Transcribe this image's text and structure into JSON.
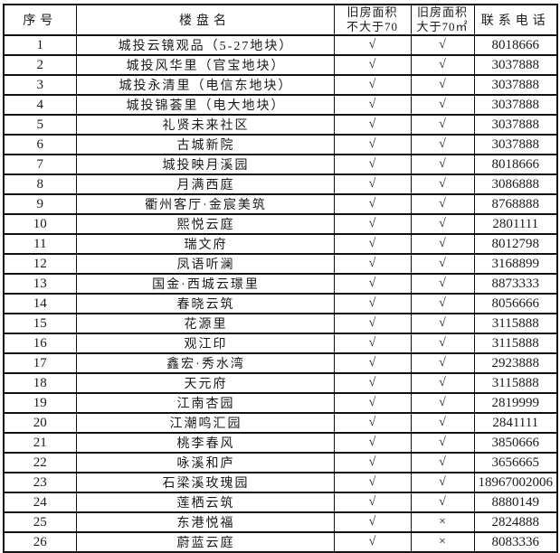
{
  "table": {
    "headers": {
      "no": "序号",
      "name": "楼盘名",
      "col3_line1": "旧房面积",
      "col3_line2": "不大于70",
      "col4_line1": "旧房面积",
      "col4_line2": "大于70㎡",
      "phone": "联系电话"
    },
    "rows": [
      {
        "no": "1",
        "name": "城投云镜观品（5-27地块）",
        "le70": "√",
        "gt70": "√",
        "phone": "8018666"
      },
      {
        "no": "2",
        "name": "城投风华里（官宝地块）",
        "le70": "√",
        "gt70": "√",
        "phone": "3037888"
      },
      {
        "no": "3",
        "name": "城投永清里（电信东地块）",
        "le70": "√",
        "gt70": "√",
        "phone": "3037888"
      },
      {
        "no": "4",
        "name": "城投锦荟里（电大地块）",
        "le70": "√",
        "gt70": "√",
        "phone": "3037888"
      },
      {
        "no": "5",
        "name": "礼贤未来社区",
        "le70": "√",
        "gt70": "√",
        "phone": "3037888"
      },
      {
        "no": "6",
        "name": "古城新院",
        "le70": "√",
        "gt70": "√",
        "phone": "3037888"
      },
      {
        "no": "7",
        "name": "城投映月溪园",
        "le70": "√",
        "gt70": "√",
        "phone": "8018666"
      },
      {
        "no": "8",
        "name": "月满西庭",
        "le70": "√",
        "gt70": "√",
        "phone": "3086888"
      },
      {
        "no": "9",
        "name": "衢州客厅·金宸美筑",
        "le70": "√",
        "gt70": "√",
        "phone": "8768888"
      },
      {
        "no": "10",
        "name": "熙悦云庭",
        "le70": "√",
        "gt70": "√",
        "phone": "2801111"
      },
      {
        "no": "11",
        "name": "瑞文府",
        "le70": "√",
        "gt70": "√",
        "phone": "8012798"
      },
      {
        "no": "12",
        "name": "凤语听澜",
        "le70": "√",
        "gt70": "√",
        "phone": "3168899"
      },
      {
        "no": "13",
        "name": "国金·西城云璟里",
        "le70": "√",
        "gt70": "√",
        "phone": "8873333"
      },
      {
        "no": "14",
        "name": "春晓云筑",
        "le70": "√",
        "gt70": "√",
        "phone": "8056666"
      },
      {
        "no": "15",
        "name": "花源里",
        "le70": "√",
        "gt70": "√",
        "phone": "3115888"
      },
      {
        "no": "16",
        "name": "观江印",
        "le70": "√",
        "gt70": "√",
        "phone": "3115888"
      },
      {
        "no": "17",
        "name": "鑫宏·秀水湾",
        "le70": "√",
        "gt70": "√",
        "phone": "2923888"
      },
      {
        "no": "18",
        "name": "天元府",
        "le70": "√",
        "gt70": "√",
        "phone": "3115888"
      },
      {
        "no": "19",
        "name": "江南杏园",
        "le70": "√",
        "gt70": "√",
        "phone": "2819999"
      },
      {
        "no": "20",
        "name": "江潮鸣汇园",
        "le70": "√",
        "gt70": "√",
        "phone": "2841111"
      },
      {
        "no": "21",
        "name": "桃李春风",
        "le70": "√",
        "gt70": "√",
        "phone": "3850666"
      },
      {
        "no": "22",
        "name": "咏溪和庐",
        "le70": "√",
        "gt70": "√",
        "phone": "3656665"
      },
      {
        "no": "23",
        "name": "石梁溪玫瑰园",
        "le70": "√",
        "gt70": "√",
        "phone": "18967002006"
      },
      {
        "no": "24",
        "name": "莲栖云筑",
        "le70": "√",
        "gt70": "√",
        "phone": "8880149"
      },
      {
        "no": "25",
        "name": "东港悦福",
        "le70": "√",
        "gt70": "×",
        "phone": "2824888"
      },
      {
        "no": "26",
        "name": "蔚蓝云庭",
        "le70": "√",
        "gt70": "×",
        "phone": "8083336"
      }
    ]
  },
  "colors": {
    "border": "#111111",
    "text": "#1a1a1a",
    "background": "#ffffff"
  }
}
